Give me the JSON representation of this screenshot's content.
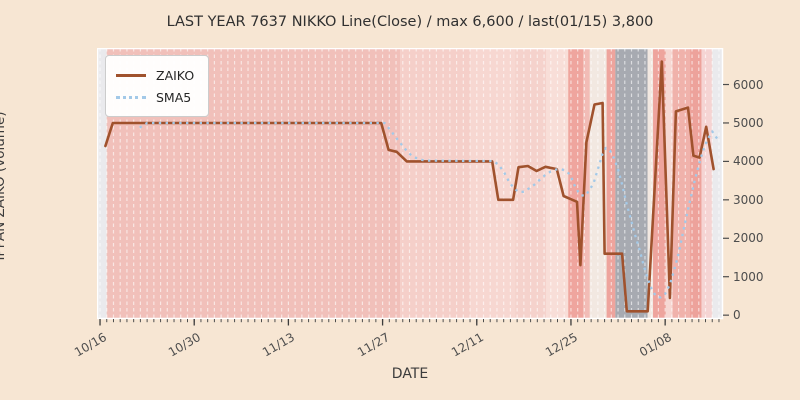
{
  "window": {
    "kind": "static chart image"
  },
  "chart_data": {
    "type": "line",
    "title": "LAST YEAR 7637 NIKKO Line(Close) / max 6,600 / last(01/15) 3,800",
    "xlabel": "DATE",
    "ylabel": "IPPAN ZAIKO (volume)",
    "max_annotation": {
      "value": 6600,
      "date": "01/08"
    },
    "last_annotation": {
      "value": 3800,
      "date": "01/15"
    },
    "x_unit": "calendar days offset from 10/16",
    "xlim": [
      -0.45,
      92.6
    ],
    "ylim": [
      -100,
      6950
    ],
    "grid": "vertical white dashed line per day",
    "legend_position": "upper left",
    "xticks": [
      {
        "day": 0,
        "label": "10/16"
      },
      {
        "day": 14,
        "label": "10/30"
      },
      {
        "day": 28,
        "label": "11/13"
      },
      {
        "day": 42,
        "label": "11/27"
      },
      {
        "day": 56,
        "label": "12/11"
      },
      {
        "day": 70,
        "label": "12/25"
      },
      {
        "day": 84,
        "label": "01/08"
      }
    ],
    "yticks": [
      0,
      1000,
      2000,
      3000,
      4000,
      5000,
      6000
    ],
    "series": [
      {
        "name": "ZAIKO",
        "style": "solid",
        "color": "#a0522d",
        "points": [
          [
            0.8,
            4400
          ],
          [
            1.9,
            5000
          ],
          [
            41.8,
            5000
          ],
          [
            42.9,
            4300
          ],
          [
            44.1,
            4250
          ],
          [
            45.6,
            4000
          ],
          [
            58.3,
            4000
          ],
          [
            59.2,
            3000
          ],
          [
            61.4,
            3000
          ],
          [
            62.2,
            3850
          ],
          [
            63.6,
            3880
          ],
          [
            64.9,
            3750
          ],
          [
            66.2,
            3860
          ],
          [
            67.9,
            3800
          ],
          [
            68.9,
            3100
          ],
          [
            70.2,
            3000
          ],
          [
            70.9,
            2950
          ],
          [
            71.4,
            1300
          ],
          [
            72.3,
            4500
          ],
          [
            73.5,
            5480
          ],
          [
            74.7,
            5520
          ],
          [
            75.0,
            1600
          ],
          [
            77.6,
            1600
          ],
          [
            78.3,
            100
          ],
          [
            81.4,
            100
          ],
          [
            83.5,
            6600
          ],
          [
            84.7,
            450
          ],
          [
            85.6,
            5300
          ],
          [
            87.4,
            5400
          ],
          [
            88.2,
            4150
          ],
          [
            89.1,
            4100
          ],
          [
            90.1,
            4900
          ],
          [
            91.2,
            3800
          ]
        ]
      },
      {
        "name": "SMA5",
        "style": "dotted",
        "color": "#a3c9e8",
        "points": [
          [
            5.9,
            4880
          ],
          [
            7.0,
            5000
          ],
          [
            42.3,
            5000
          ],
          [
            43.3,
            4780
          ],
          [
            44.3,
            4550
          ],
          [
            45.3,
            4330
          ],
          [
            46.3,
            4150
          ],
          [
            47.3,
            4060
          ],
          [
            48.3,
            4020
          ],
          [
            58.5,
            4010
          ],
          [
            59.3,
            3900
          ],
          [
            60.1,
            3700
          ],
          [
            60.8,
            3470
          ],
          [
            61.5,
            3300
          ],
          [
            62.2,
            3210
          ],
          [
            63.0,
            3210
          ],
          [
            63.8,
            3300
          ],
          [
            64.6,
            3400
          ],
          [
            65.4,
            3530
          ],
          [
            66.2,
            3650
          ],
          [
            67.0,
            3740
          ],
          [
            67.8,
            3790
          ],
          [
            68.5,
            3800
          ],
          [
            69.2,
            3760
          ],
          [
            69.9,
            3650
          ],
          [
            70.6,
            3350
          ],
          [
            71.3,
            3140
          ],
          [
            72.0,
            3100
          ],
          [
            72.7,
            3230
          ],
          [
            73.4,
            3450
          ],
          [
            74.0,
            3800
          ],
          [
            74.7,
            4200
          ],
          [
            75.2,
            4350
          ],
          [
            75.8,
            4280
          ],
          [
            76.4,
            4080
          ],
          [
            77.0,
            3800
          ],
          [
            77.6,
            3400
          ],
          [
            78.2,
            2950
          ],
          [
            78.9,
            2500
          ],
          [
            79.5,
            2100
          ],
          [
            80.2,
            1700
          ],
          [
            80.8,
            1300
          ],
          [
            81.4,
            950
          ],
          [
            82.0,
            680
          ],
          [
            82.6,
            500
          ],
          [
            83.3,
            460
          ],
          [
            84.0,
            550
          ],
          [
            84.7,
            800
          ],
          [
            85.3,
            1150
          ],
          [
            86.0,
            1600
          ],
          [
            86.6,
            2100
          ],
          [
            87.2,
            2600
          ],
          [
            87.8,
            3050
          ],
          [
            88.4,
            3500
          ],
          [
            89.0,
            3900
          ],
          [
            89.5,
            4200
          ],
          [
            90.0,
            4450
          ],
          [
            90.5,
            4630
          ],
          [
            91.0,
            4780
          ],
          [
            91.5,
            4650
          ],
          [
            91.9,
            4550
          ]
        ]
      }
    ],
    "background_bands": [
      {
        "from": -0.45,
        "to": 1.0,
        "color": "#eaeaed"
      },
      {
        "from": 1.0,
        "to": 44.6,
        "color": "#f1c0ba"
      },
      {
        "from": 44.6,
        "to": 55.0,
        "color": "#f5cfc9"
      },
      {
        "from": 55.0,
        "to": 61.7,
        "color": "#f7d7d1"
      },
      {
        "from": 61.7,
        "to": 66.3,
        "color": "#f5d2cc"
      },
      {
        "from": 66.3,
        "to": 69.6,
        "color": "#f8ded8"
      },
      {
        "from": 69.6,
        "to": 71.8,
        "color": "#efa59e"
      },
      {
        "from": 71.8,
        "to": 72.8,
        "color": "#f2bcb6"
      },
      {
        "from": 72.8,
        "to": 75.3,
        "color": "#f2e8e1"
      },
      {
        "from": 75.3,
        "to": 76.6,
        "color": "#eea49d"
      },
      {
        "from": 76.6,
        "to": 81.4,
        "color": "#a7aab1"
      },
      {
        "from": 81.4,
        "to": 82.2,
        "color": "#f2e8e1"
      },
      {
        "from": 82.2,
        "to": 84.1,
        "color": "#eea49d"
      },
      {
        "from": 84.1,
        "to": 85.1,
        "color": "#f6d8d3"
      },
      {
        "from": 85.1,
        "to": 87.7,
        "color": "#f0b2ab"
      },
      {
        "from": 87.7,
        "to": 89.4,
        "color": "#eda29b"
      },
      {
        "from": 89.4,
        "to": 91.0,
        "color": "#f5d4d3"
      },
      {
        "from": 91.0,
        "to": 92.6,
        "color": "#eaeaed"
      }
    ]
  },
  "colors": {
    "figure_background": "#f7e6d3",
    "zaiko_line": "#a0522d",
    "sma5_line": "#a3c9e8",
    "closed_period_gray": "#a7aab1",
    "tick_text": "#4d4d4d",
    "grid_line": "rgba(255,255,255,0.6)"
  },
  "legend": {
    "items": [
      {
        "label": "ZAIKO"
      },
      {
        "label": "SMA5"
      }
    ]
  }
}
